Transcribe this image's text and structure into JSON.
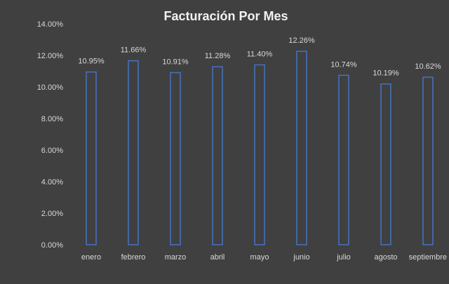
{
  "chart_data": {
    "type": "bar",
    "title": "Facturación Por Mes",
    "categories": [
      "enero",
      "febrero",
      "marzo",
      "abril",
      "mayo",
      "junio",
      "julio",
      "agosto",
      "septiembre"
    ],
    "values": [
      10.95,
      11.66,
      10.91,
      11.28,
      11.4,
      12.26,
      10.74,
      10.19,
      10.62
    ],
    "data_labels": [
      "10.95%",
      "11.66%",
      "10.91%",
      "11.28%",
      "11.40%",
      "12.26%",
      "10.74%",
      "10.19%",
      "10.62%"
    ],
    "y_ticks": [
      0,
      2,
      4,
      6,
      8,
      10,
      12,
      14
    ],
    "y_tick_labels": [
      "0.00%",
      "2.00%",
      "4.00%",
      "6.00%",
      "8.00%",
      "10.00%",
      "12.00%",
      "14.00%"
    ],
    "ylim": [
      0,
      14
    ],
    "grid": false,
    "legend": "none",
    "colors": {
      "background": "#404040",
      "bar_stroke": "#4472c4",
      "bar_fill": "#404040",
      "text": "#d9d9d9",
      "title": "#f2f2f2"
    }
  }
}
